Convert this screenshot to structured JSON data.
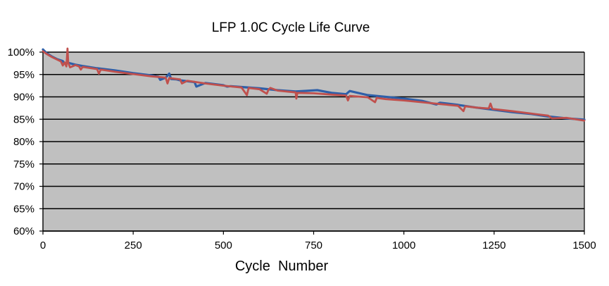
{
  "chart_data": {
    "type": "line",
    "title": "LFP 1.0C Cycle Life Curve",
    "xlabel": "Cycle  Number",
    "ylabel": "",
    "xlim": [
      0,
      1500
    ],
    "ylim": [
      60,
      100
    ],
    "x_ticks": [
      {
        "value": 0,
        "label": "0"
      },
      {
        "value": 250,
        "label": "250"
      },
      {
        "value": 500,
        "label": "500"
      },
      {
        "value": 750,
        "label": "750"
      },
      {
        "value": 1000,
        "label": "1000"
      },
      {
        "value": 1250,
        "label": "1250"
      },
      {
        "value": 1500,
        "label": "1500"
      }
    ],
    "y_ticks": [
      {
        "value": 100,
        "label": "100%"
      },
      {
        "value": 95,
        "label": "95%"
      },
      {
        "value": 90,
        "label": "90%"
      },
      {
        "value": 85,
        "label": "85%"
      },
      {
        "value": 80,
        "label": "80%"
      },
      {
        "value": 75,
        "label": "75%"
      },
      {
        "value": 70,
        "label": "70%"
      },
      {
        "value": 65,
        "label": "65%"
      },
      {
        "value": 60,
        "label": "60%"
      }
    ],
    "grid": "horizontal",
    "legend": "none",
    "plot_background": "#c0c0c0",
    "gridline_color": "#000000",
    "series": [
      {
        "color": "#2e5fa8",
        "x": [
          0,
          10,
          25,
          40,
          55,
          60,
          70,
          90,
          110,
          150,
          200,
          250,
          300,
          320,
          325,
          340,
          350,
          355,
          370,
          380,
          400,
          420,
          425,
          450,
          500,
          510,
          520,
          550,
          600,
          650,
          700,
          760,
          800,
          840,
          850,
          900,
          950,
          1000,
          1050,
          1090,
          1100,
          1150,
          1200,
          1250,
          1300,
          1350,
          1400,
          1450,
          1500
        ],
        "y": [
          100.6,
          99.8,
          99.0,
          98.4,
          98.0,
          97.5,
          97.6,
          97.2,
          96.9,
          96.4,
          95.9,
          95.3,
          94.8,
          94.5,
          93.8,
          94.3,
          95.2,
          94.0,
          93.9,
          93.7,
          93.5,
          93.3,
          92.3,
          93.1,
          92.6,
          92.3,
          92.4,
          92.2,
          91.9,
          91.5,
          91.2,
          91.5,
          90.9,
          90.6,
          91.3,
          90.4,
          90.0,
          89.6,
          89.1,
          88.3,
          88.7,
          88.2,
          87.6,
          87.1,
          86.6,
          86.2,
          85.6,
          85.2,
          84.9
        ]
      },
      {
        "color": "#c0504d",
        "x": [
          0,
          10,
          25,
          40,
          50,
          55,
          60,
          65,
          68,
          70,
          75,
          90,
          100,
          105,
          110,
          150,
          155,
          160,
          200,
          250,
          300,
          340,
          345,
          350,
          380,
          385,
          400,
          450,
          500,
          550,
          565,
          570,
          600,
          620,
          625,
          630,
          650,
          700,
          702,
          705,
          750,
          800,
          840,
          845,
          850,
          900,
          920,
          925,
          930,
          950,
          1000,
          1050,
          1100,
          1150,
          1165,
          1170,
          1200,
          1235,
          1240,
          1245,
          1300,
          1350,
          1400,
          1410,
          1450,
          1500
        ],
        "y": [
          100.2,
          99.6,
          98.9,
          98.3,
          97.9,
          97.0,
          97.7,
          96.8,
          100.8,
          97.6,
          96.6,
          97.1,
          96.8,
          96.1,
          96.7,
          96.2,
          95.2,
          96.1,
          95.6,
          95.1,
          94.6,
          94.3,
          93.0,
          94.2,
          93.9,
          93.0,
          93.6,
          93.0,
          92.5,
          92.1,
          90.4,
          92.0,
          91.7,
          90.7,
          91.6,
          92.0,
          91.4,
          91.0,
          89.6,
          90.9,
          90.8,
          90.5,
          90.3,
          89.2,
          90.2,
          89.9,
          88.8,
          89.8,
          89.7,
          89.5,
          89.2,
          88.8,
          88.4,
          88.0,
          86.8,
          87.9,
          87.6,
          87.4,
          88.5,
          87.3,
          86.8,
          86.3,
          85.8,
          85.2,
          85.3,
          84.7
        ]
      }
    ]
  }
}
